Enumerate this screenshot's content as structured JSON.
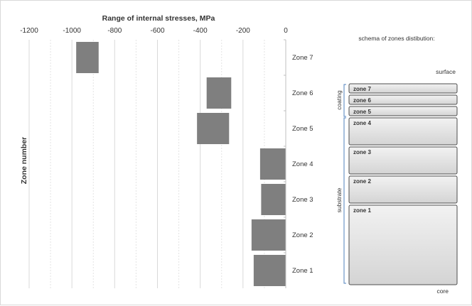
{
  "chart_data": {
    "type": "bar",
    "title": "Range of internal stresses, MPa",
    "xlabel": "",
    "ylabel": "Zone number",
    "xlim": [
      -1200,
      0
    ],
    "x_ticks": [
      "-1200",
      "-1000",
      "-800",
      "-600",
      "-400",
      "-200",
      "0"
    ],
    "categories": [
      "Zone 7",
      "Zone 6",
      "Zone 5",
      "Zone 4",
      "Zone 3",
      "Zone 2",
      "Zone 1"
    ],
    "ranges": [
      {
        "zone": "Zone 7",
        "min": -980,
        "max": -875
      },
      {
        "zone": "Zone 6",
        "min": -370,
        "max": -255
      },
      {
        "zone": "Zone 5",
        "min": -415,
        "max": -265
      },
      {
        "zone": "Zone 4",
        "min": -120,
        "max": 0
      },
      {
        "zone": "Zone 3",
        "min": -115,
        "max": 0
      },
      {
        "zone": "Zone 2",
        "min": -160,
        "max": 0
      },
      {
        "zone": "Zone 1",
        "min": -150,
        "max": 0
      }
    ],
    "bar_color": "#7f7f7f",
    "grid": "vertical dashed every 100, solid every 200"
  },
  "schema": {
    "title": "schema of zones distibution:",
    "surface_label": "surface",
    "core_label": "core",
    "coating_label": "coating",
    "substrate_label": "substrate",
    "zones": [
      "zone 7",
      "zone 6",
      "zone 5",
      "zone 4",
      "zone 3",
      "zone 2",
      "zone 1"
    ],
    "bracket_color": "#4f81bd"
  }
}
